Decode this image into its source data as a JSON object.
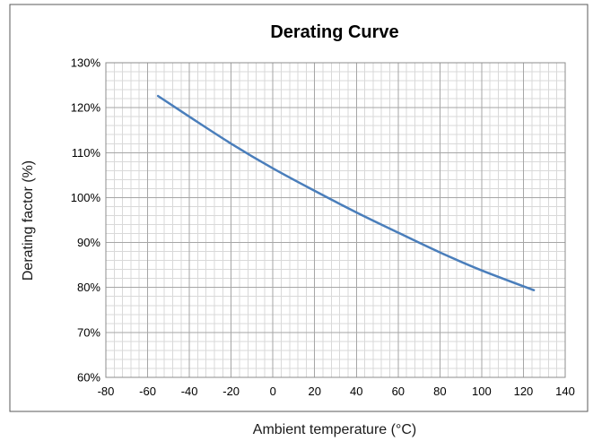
{
  "chart_data": {
    "type": "line",
    "title": "Derating Curve",
    "xlabel": "Ambient temperature (°C)",
    "ylabel": "Derating factor (%)",
    "xlim": [
      -80,
      140
    ],
    "ylim": [
      60,
      130
    ],
    "x_ticks": [
      -80,
      -60,
      -40,
      -20,
      0,
      20,
      40,
      60,
      80,
      100,
      120,
      140
    ],
    "y_ticks": [
      60,
      70,
      80,
      90,
      100,
      110,
      120,
      130
    ],
    "y_tick_labels": [
      "60%",
      "70%",
      "80%",
      "90%",
      "100%",
      "110%",
      "120%",
      "130%"
    ],
    "x_tick_labels": [
      "-80",
      "-60",
      "-40",
      "-20",
      "0",
      "20",
      "40",
      "60",
      "80",
      "100",
      "120",
      "140"
    ],
    "grid": true,
    "minor_grid": true,
    "legend": "none",
    "series": [
      {
        "x": [
          -55,
          -40,
          -20,
          0,
          20,
          40,
          60,
          80,
          100,
          125
        ],
        "values": [
          122.6,
          118.0,
          112.0,
          106.5,
          101.5,
          96.7,
          92.2,
          87.8,
          83.8,
          79.4
        ],
        "color": "#4a7ebb"
      }
    ],
    "frame_color": "#595959",
    "major_grid_color": "#a6a6a6",
    "minor_grid_color": "#d9d9d9"
  }
}
